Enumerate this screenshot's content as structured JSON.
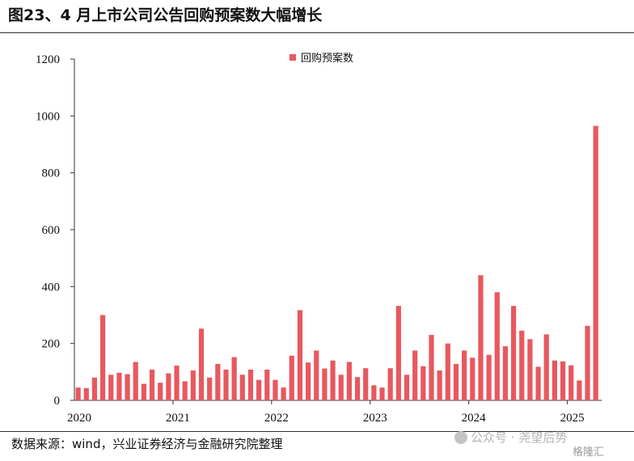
{
  "title": "图23、4 月上市公司公告回购预案数大幅增长",
  "source": "数据来源：wind，兴业证券经济与金融研究院整理",
  "watermark": "公众号 · 尧望后势",
  "logo_text": "格隆汇",
  "bar_color": "#E8585F",
  "chart_data": {
    "type": "bar",
    "title": "",
    "xlabel": "",
    "ylabel": "",
    "ylim": [
      0,
      1200
    ],
    "yticks": [
      0,
      200,
      400,
      600,
      800,
      1000,
      1200
    ],
    "xtick_labels": [
      "2020",
      "2021",
      "2022",
      "2023",
      "2024",
      "2025"
    ],
    "legend": "top-center",
    "grid": false,
    "series": [
      {
        "name": "回购预案数",
        "values": [
          45,
          43,
          80,
          300,
          90,
          97,
          92,
          135,
          58,
          108,
          62,
          95,
          122,
          67,
          105,
          252,
          80,
          128,
          108,
          152,
          90,
          108,
          72,
          108,
          72,
          45,
          157,
          317,
          133,
          175,
          112,
          140,
          90,
          135,
          82,
          113,
          53,
          45,
          113,
          332,
          90,
          175,
          120,
          230,
          105,
          200,
          128,
          175,
          150,
          440,
          160,
          380,
          190,
          332,
          245,
          215,
          118,
          232,
          140,
          137,
          123,
          70,
          262,
          965
        ]
      }
    ]
  }
}
